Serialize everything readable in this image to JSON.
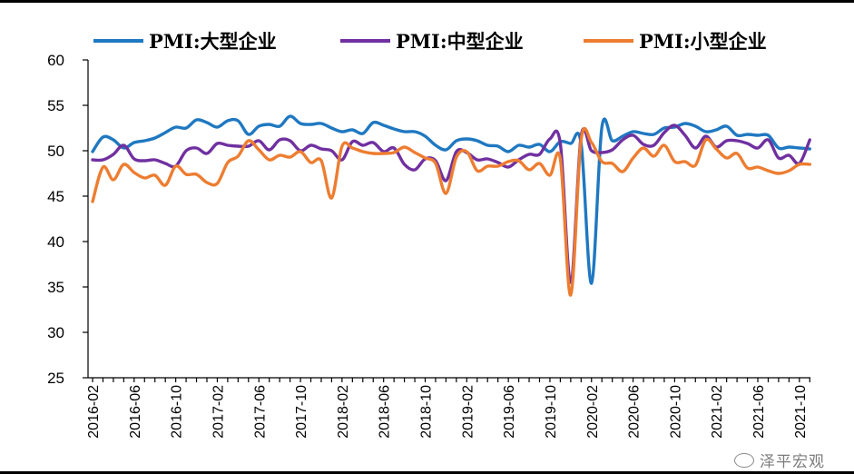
{
  "chart_data": {
    "type": "line",
    "title": "",
    "xlabel": "",
    "ylabel": "",
    "ylim": [
      25,
      60
    ],
    "yticks": [
      25,
      30,
      35,
      40,
      45,
      50,
      55,
      60
    ],
    "x_start": "2016-02",
    "x_tick_labels": [
      "2016-02",
      "2016-06",
      "2016-10",
      "2017-02",
      "2017-06",
      "2017-10",
      "2018-02",
      "2018-06",
      "2018-10",
      "2019-02",
      "2019-06",
      "2019-10",
      "2020-02",
      "2020-06",
      "2020-10",
      "2021-02",
      "2021-06",
      "2021-10"
    ],
    "legend_position": "top",
    "series": [
      {
        "name": "PMI:大型企业",
        "color": "#1f78c1",
        "values": [
          49.9,
          51.5,
          51.2,
          50.3,
          50.9,
          51.1,
          51.4,
          52.0,
          52.6,
          52.5,
          53.4,
          53.1,
          52.6,
          53.3,
          53.3,
          51.8,
          52.7,
          52.9,
          52.7,
          53.8,
          53.0,
          52.9,
          53.0,
          52.5,
          52.1,
          52.3,
          51.9,
          53.1,
          52.8,
          52.4,
          52.1,
          52.1,
          51.6,
          50.6,
          50.1,
          51.1,
          51.3,
          51.1,
          50.6,
          50.5,
          49.9,
          50.6,
          50.4,
          50.7,
          49.9,
          51.0,
          50.8,
          50.8,
          35.4,
          52.6,
          51.1,
          51.6,
          52.1,
          51.9,
          51.8,
          52.5,
          52.6,
          53.0,
          52.7,
          52.1,
          52.3,
          52.7,
          51.7,
          51.8,
          51.7,
          51.7,
          50.3,
          50.4,
          50.3,
          50.2
        ]
      },
      {
        "name": "PMI:中型企业",
        "color": "#7030a0",
        "values": [
          49.0,
          49.0,
          49.6,
          50.6,
          49.1,
          48.9,
          49.0,
          48.6,
          48.3,
          50.0,
          50.3,
          49.7,
          50.8,
          50.6,
          50.5,
          50.5,
          51.1,
          50.1,
          51.2,
          51.1,
          50.0,
          50.6,
          50.2,
          50.0,
          49.0,
          51.0,
          50.6,
          50.9,
          49.9,
          50.3,
          48.5,
          47.9,
          49.1,
          48.9,
          46.7,
          49.9,
          49.8,
          49.0,
          49.1,
          48.7,
          48.2,
          49.0,
          49.6,
          49.6,
          51.3,
          50.8,
          35.5,
          51.6,
          50.0,
          49.8,
          50.1,
          51.2,
          51.7,
          50.7,
          50.6,
          52.0,
          52.8,
          51.7,
          50.3,
          51.6,
          50.4,
          51.1,
          51.1,
          50.8,
          50.3,
          51.2,
          49.2,
          49.5,
          48.6,
          51.2
        ]
      },
      {
        "name": "PMI:小型企业",
        "color": "#ed7d31",
        "values": [
          44.4,
          48.2,
          46.8,
          48.5,
          47.6,
          47.0,
          47.3,
          46.2,
          48.3,
          47.4,
          47.4,
          46.5,
          46.4,
          48.7,
          49.4,
          51.1,
          50.1,
          49.0,
          49.5,
          49.3,
          49.9,
          48.7,
          48.9,
          44.8,
          50.5,
          50.3,
          49.9,
          49.7,
          49.7,
          49.8,
          50.4,
          49.8,
          49.2,
          48.6,
          45.3,
          49.3,
          49.9,
          47.8,
          48.3,
          48.3,
          48.8,
          48.9,
          47.9,
          48.6,
          47.3,
          49.1,
          34.1,
          51.2,
          50.9,
          48.8,
          48.6,
          47.7,
          49.2,
          50.3,
          49.4,
          50.6,
          48.8,
          48.8,
          48.4,
          51.2,
          50.2,
          49.2,
          49.7,
          48.1,
          48.2,
          47.8,
          47.5,
          47.8,
          48.5,
          48.5
        ]
      }
    ]
  },
  "watermark": {
    "text": "泽平宏观",
    "icon": "wechat-icon"
  }
}
